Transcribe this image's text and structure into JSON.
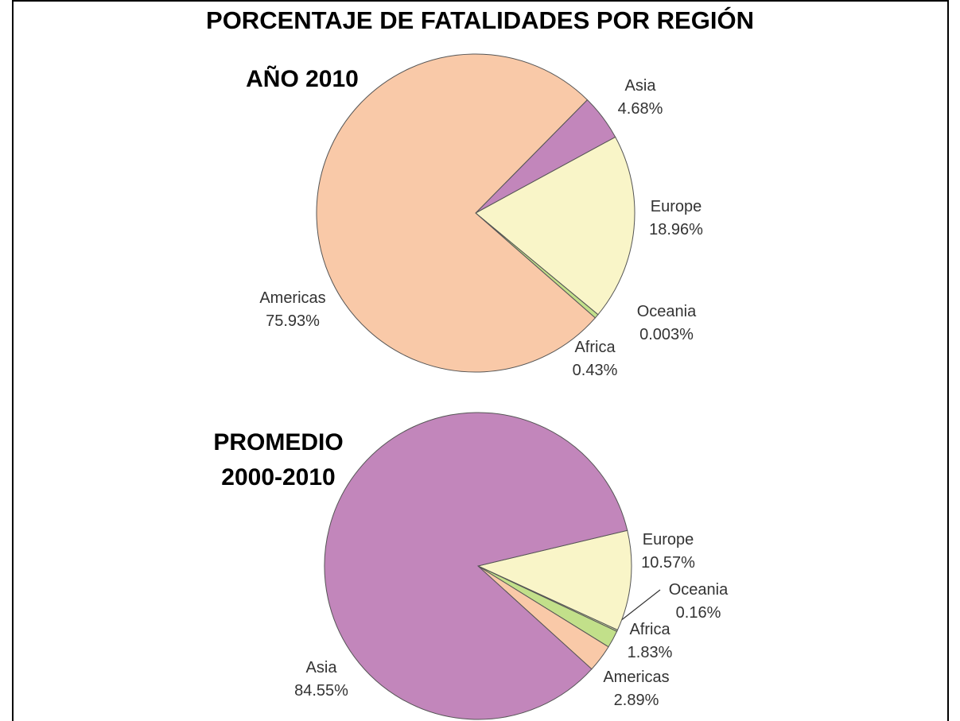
{
  "title": "PORCENTAJE DE FATALIDADES POR REGIÓN",
  "chart_data": [
    {
      "type": "pie",
      "title": "AÑO 2010",
      "categories": [
        "Asia",
        "Europe",
        "Oceania",
        "Africa",
        "Americas"
      ],
      "values": [
        4.68,
        18.96,
        0.003,
        0.43,
        75.93
      ],
      "value_labels": [
        "4.68%",
        "18.96%",
        "0.003%",
        "0.43%",
        "75.93%"
      ],
      "colors": [
        "#c286bb",
        "#f9f5c8",
        "#d9eaa6",
        "#c2e08a",
        "#f9c9a8"
      ]
    },
    {
      "type": "pie",
      "title": "PROMEDIO 2000-2010",
      "categories": [
        "Europe",
        "Oceania",
        "Africa",
        "Americas",
        "Asia"
      ],
      "values": [
        10.57,
        0.16,
        1.83,
        2.89,
        84.55
      ],
      "value_labels": [
        "10.57%",
        "0.16%",
        "1.83%",
        "2.89%",
        "84.55%"
      ],
      "colors": [
        "#f9f5c8",
        "#d9eaa6",
        "#c2e08a",
        "#f9c9a8",
        "#c286bb"
      ]
    }
  ]
}
